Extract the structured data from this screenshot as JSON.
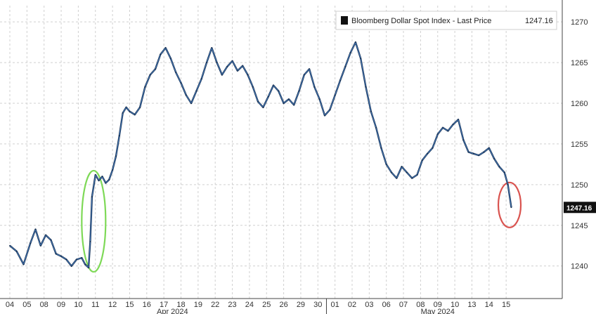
{
  "chart_data": {
    "type": "line",
    "title": "",
    "xlabel": "",
    "ylabel": "",
    "ylim": [
      1236,
      1272
    ],
    "yticks": [
      1240,
      1245,
      1250,
      1255,
      1260,
      1265,
      1270
    ],
    "x_categories": [
      "04",
      "05",
      "08",
      "09",
      "10",
      "11",
      "12",
      "15",
      "16",
      "17",
      "18",
      "19",
      "22",
      "23",
      "24",
      "25",
      "26",
      "29",
      "30",
      "01",
      "02",
      "03",
      "06",
      "07",
      "08",
      "09",
      "10",
      "13",
      "14",
      "15"
    ],
    "month_labels": [
      {
        "label": "Apr 2024",
        "at_index": 9.5
      },
      {
        "label": "May 2024",
        "at_index": 25
      }
    ],
    "grid": true,
    "legend_position": "top-right",
    "series": [
      {
        "name": "Bloomberg Dollar Spot Index - Last Price",
        "last_value_label": "1247.16",
        "color": "#1a3355",
        "x": [
          0,
          0.4,
          0.8,
          1.2,
          1.5,
          1.8,
          2.1,
          2.4,
          2.7,
          3.0,
          3.3,
          3.6,
          3.9,
          4.2,
          4.4,
          4.6,
          4.7,
          4.8,
          5.0,
          5.2,
          5.4,
          5.6,
          5.8,
          6.0,
          6.2,
          6.4,
          6.6,
          6.8,
          7.0,
          7.3,
          7.6,
          7.9,
          8.2,
          8.5,
          8.8,
          9.1,
          9.4,
          9.7,
          10.0,
          10.3,
          10.6,
          10.9,
          11.2,
          11.5,
          11.8,
          12.1,
          12.4,
          12.7,
          13.0,
          13.3,
          13.6,
          13.9,
          14.2,
          14.5,
          14.8,
          15.1,
          15.4,
          15.7,
          16.0,
          16.3,
          16.6,
          16.9,
          17.2,
          17.5,
          17.8,
          18.1,
          18.4,
          18.7,
          19.0,
          19.3,
          19.6,
          19.9,
          20.2,
          20.5,
          20.8,
          21.1,
          21.4,
          21.7,
          22.0,
          22.3,
          22.6,
          22.9,
          23.2,
          23.5,
          23.8,
          24.1,
          24.4,
          24.7,
          25.0,
          25.3,
          25.6,
          25.9,
          26.2,
          26.5,
          26.8,
          27.1,
          27.4,
          27.7,
          28.0,
          28.3,
          28.6,
          28.9,
          29.1,
          29.3
        ],
        "y": [
          1242.5,
          1241.8,
          1240.2,
          1242.8,
          1244.5,
          1242.5,
          1243.8,
          1243.2,
          1241.5,
          1241.2,
          1240.8,
          1240.0,
          1240.8,
          1241.0,
          1240.2,
          1239.8,
          1243.0,
          1248.5,
          1251.2,
          1250.5,
          1251.0,
          1250.2,
          1250.6,
          1251.8,
          1253.5,
          1256.0,
          1258.8,
          1259.5,
          1259.0,
          1258.6,
          1259.5,
          1262.0,
          1263.5,
          1264.2,
          1266.0,
          1266.8,
          1265.5,
          1263.8,
          1262.5,
          1261.0,
          1260.0,
          1261.5,
          1263.0,
          1265.0,
          1266.8,
          1265.0,
          1263.5,
          1264.5,
          1265.2,
          1264.0,
          1264.6,
          1263.5,
          1262.0,
          1260.2,
          1259.5,
          1260.8,
          1262.2,
          1261.5,
          1260.0,
          1260.5,
          1259.8,
          1261.5,
          1263.5,
          1264.2,
          1262.0,
          1260.5,
          1258.5,
          1259.2,
          1261.0,
          1262.8,
          1264.5,
          1266.2,
          1267.5,
          1265.5,
          1262.0,
          1259.0,
          1257.0,
          1254.5,
          1252.5,
          1251.5,
          1250.8,
          1252.2,
          1251.5,
          1250.8,
          1251.2,
          1253.0,
          1253.8,
          1254.5,
          1256.2,
          1257.0,
          1256.6,
          1257.4,
          1258.0,
          1255.5,
          1254.0,
          1253.8,
          1253.6,
          1254.0,
          1254.5,
          1253.2,
          1252.2,
          1251.5,
          1250.0,
          1247.2
        ]
      }
    ],
    "annotations": [
      {
        "type": "ellipse",
        "color": "#7ed957",
        "note": "spike on 10 Apr",
        "x_index": 4.9,
        "y_value": 1245.5
      },
      {
        "type": "ellipse",
        "color": "#d9534f",
        "note": "drop on 15 May",
        "x_index": 29.2,
        "y_value": 1247.5
      }
    ],
    "colors": {
      "line": "#1a3355",
      "line_highlight": "#4a7fbf",
      "grid": "#d0d0d0",
      "last_badge": "#111111"
    }
  }
}
